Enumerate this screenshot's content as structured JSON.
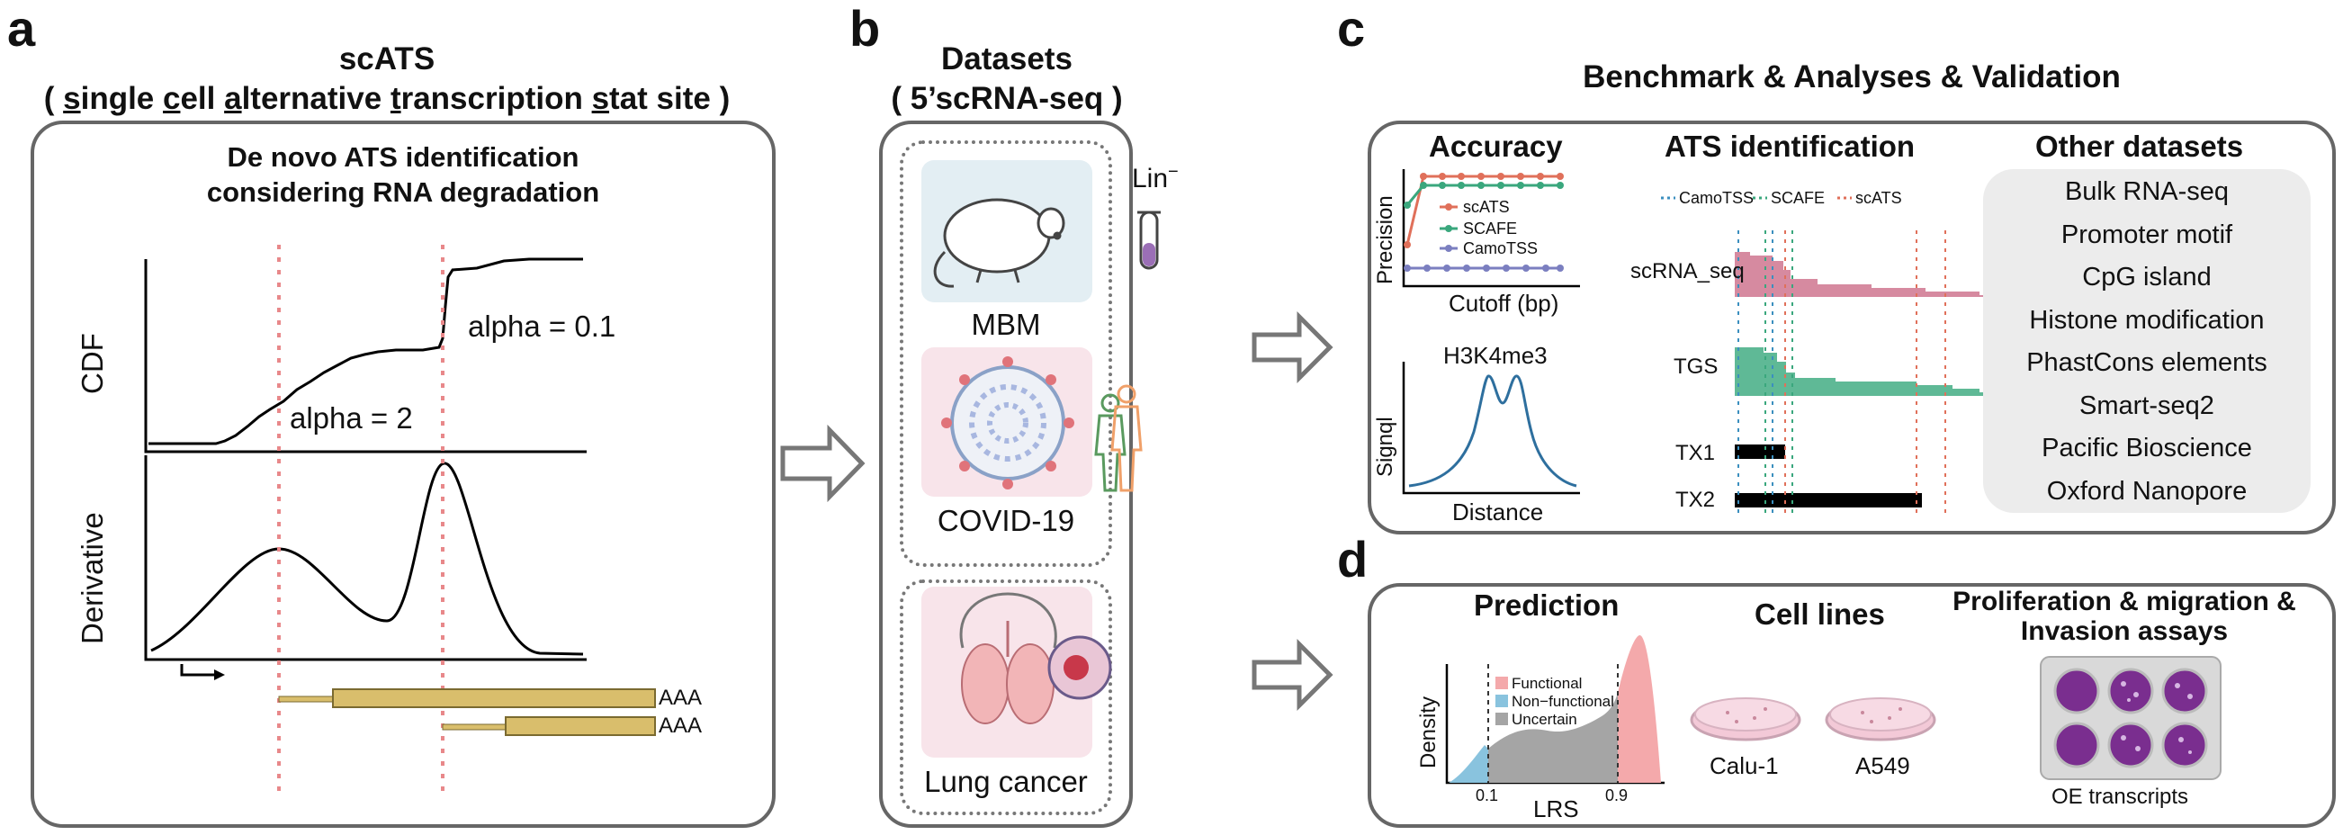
{
  "panel_a": {
    "letter": "a",
    "title_line1": "scATS",
    "title_line2_parts": [
      "( ",
      "s",
      "ingle ",
      "c",
      "ell ",
      "a",
      "lternative ",
      "t",
      "ranscription ",
      "s",
      "tat site )"
    ],
    "subtitle_line1": "De novo ATS identification",
    "subtitle_line2": "considering RNA degradation",
    "cdf_label": "CDF",
    "derivative_label": "Derivative",
    "alpha_high": "alpha = 0.1",
    "alpha_low": "alpha = 2",
    "poly_a_1": "AAA",
    "poly_a_2": "AAA"
  },
  "panel_b": {
    "letter": "b",
    "title_line1": "Datasets",
    "title_line2": "( 5’scRNA-seq )",
    "mbm_label": "MBM",
    "lin_label": "Lin",
    "lin_sup": "−",
    "covid_label": "COVID-19",
    "lung_label": "Lung cancer"
  },
  "panel_c": {
    "letter": "c",
    "title": "Benchmark & Analyses & Validation",
    "accuracy_title": "Accuracy",
    "accuracy_ylabel": "Precision",
    "accuracy_xlabel": "Cutoff (bp)",
    "legend": [
      "scATS",
      "SCAFE",
      "CamoTSS"
    ],
    "h3k4_title": "H3K4me3",
    "h3k4_ylabel": "Signql",
    "h3k4_xlabel": "Distance",
    "ats_title": "ATS identification",
    "ats_legend": [
      "CamoTSS",
      "SCAFE",
      "scATS"
    ],
    "track_scrna": "scRNA_seq",
    "track_tgs": "TGS",
    "track_tx1": "TX1",
    "track_tx2": "TX2",
    "other_title": "Other datasets",
    "other_items": [
      "Bulk RNA-seq",
      "Promoter motif",
      "CpG island",
      "Histone modification",
      "PhastCons elements",
      "Smart-seq2",
      "Pacific Bioscience",
      "Oxford Nanopore"
    ]
  },
  "panel_d": {
    "letter": "d",
    "prediction_title": "Prediction",
    "density_label": "Density",
    "lrs_label": "LRS",
    "tick_low": "0.1",
    "tick_high": "0.9",
    "pred_legend": [
      "Functional",
      "Non−functional",
      "Uncertain"
    ],
    "cell_lines_title": "Cell lines",
    "cell_line_1": "Calu-1",
    "cell_line_2": "A549",
    "assay_title_line1": "Proliferation & migration &",
    "assay_title_line2": "Invasion assays",
    "oe_label": "OE transcripts"
  },
  "colors": {
    "pink_line": "#e8888a",
    "scats": "#e0705a",
    "scafe": "#3aa77d",
    "camotss": "#7b7fc0",
    "track_pink": "#d68aa0",
    "track_green": "#5fb996",
    "gene_gold": "#d9be6c",
    "prediction_pink": "#f4a9ab",
    "prediction_blue": "#89c3de",
    "prediction_grey": "#a5a5a5",
    "signal_blue": "#2e6f9e"
  }
}
